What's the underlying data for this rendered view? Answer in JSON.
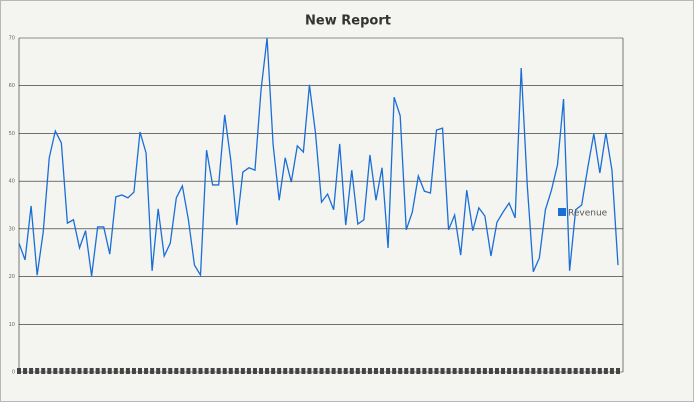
{
  "chart_data": {
    "type": "line",
    "title": "New Report",
    "categories": [
      null,
      null,
      null,
      null,
      null,
      null,
      null,
      null,
      null,
      null,
      null,
      null,
      null,
      null,
      null,
      null,
      null,
      null,
      null,
      null,
      null,
      null,
      null,
      null,
      null,
      null,
      null,
      null,
      null,
      null,
      null,
      null,
      null,
      null,
      null,
      null,
      null,
      null,
      null,
      null,
      null,
      null,
      null,
      null,
      null,
      null,
      null,
      null,
      null,
      null,
      null,
      null,
      null,
      null,
      null,
      null,
      null,
      null,
      null,
      null,
      null,
      null,
      null,
      null,
      null,
      null,
      null,
      null,
      null,
      null,
      null,
      null,
      null,
      null,
      null,
      null,
      null,
      null,
      null,
      null,
      null,
      null,
      null,
      null,
      null,
      null,
      null,
      null,
      null,
      null,
      null,
      null,
      null,
      null,
      null,
      null,
      null,
      null,
      null,
      null
    ],
    "series": [
      {
        "name": "Revenue",
        "color": "#1a6fd6",
        "values": [
          27,
          23.5,
          34.8,
          20.3,
          29.3,
          44.9,
          50.5,
          48,
          31.2,
          31.9,
          26,
          29.6,
          20.1,
          30.4,
          30.4,
          24.7,
          36.7,
          37.1,
          36.5,
          37.7,
          50.3,
          45.9,
          21.2,
          34.2,
          24.3,
          27,
          36.5,
          39,
          31.9,
          22.4,
          20.3,
          46.5,
          39.2,
          39.2,
          53.9,
          44.4,
          30.8,
          41.9,
          42.8,
          42.3,
          59.1,
          70,
          47.6,
          36,
          44.9,
          39.8,
          47.4,
          46.1,
          60.2,
          50.1,
          35.6,
          37.3,
          34,
          47.8,
          30.8,
          42.3,
          31,
          31.9,
          45.5,
          36,
          42.8,
          26,
          57.6,
          53.7,
          29.8,
          33.5,
          41.1,
          37.9,
          37.5,
          50.7,
          51.1,
          29.8,
          32.9,
          24.5,
          38.1,
          29.6,
          34.4,
          32.7,
          24.3,
          31.4,
          33.5,
          35.4,
          32.3,
          63.7,
          39.2,
          21,
          23.9,
          34,
          38.1,
          43.4,
          57.2,
          21.2,
          34,
          35,
          42.8,
          49.9,
          41.7,
          50.1,
          42.3,
          22.4
        ]
      }
    ],
    "ylim": [
      0,
      70
    ],
    "yticks": [
      0,
      10,
      20,
      30,
      40,
      50,
      60,
      70
    ],
    "grid": true
  }
}
